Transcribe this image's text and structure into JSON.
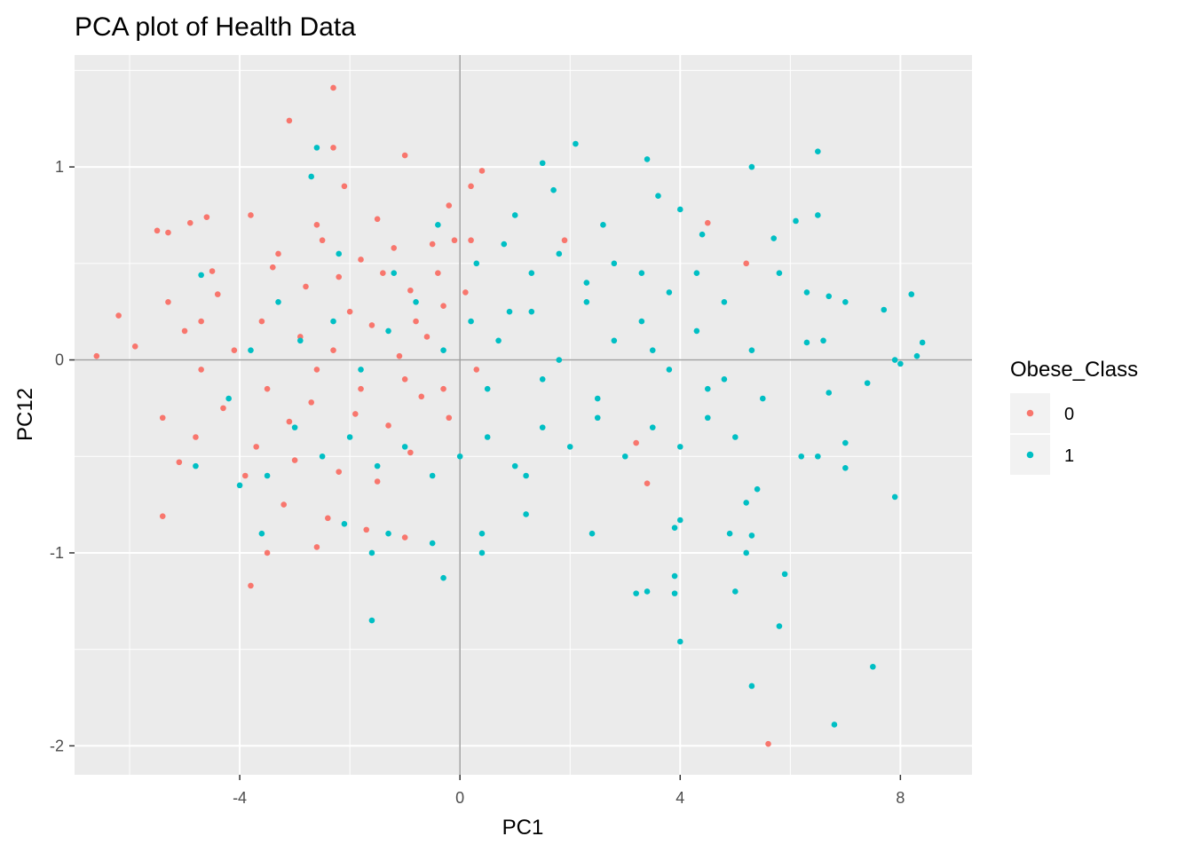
{
  "chart_data": {
    "type": "scatter",
    "title": "PCA plot of Health Data",
    "xlabel": "PC1",
    "ylabel": "PC12",
    "xlim": [
      -7.0,
      9.3
    ],
    "ylim": [
      -2.15,
      1.58
    ],
    "xticks": [
      -4,
      0,
      4,
      8
    ],
    "yticks": [
      -2,
      -1,
      0,
      1
    ],
    "xtick_labels": [
      "-4",
      "0",
      "4",
      "8"
    ],
    "ytick_labels": [
      "-2",
      "-1",
      "0",
      "1"
    ],
    "grid": true,
    "reference_lines": {
      "x": 0,
      "y": 0
    },
    "legend": {
      "title": "Obese_Class",
      "placement": "right",
      "entries": [
        {
          "label": "0",
          "color": "#F8766D"
        },
        {
          "label": "1",
          "color": "#00BFC4"
        }
      ]
    },
    "series": [
      {
        "name": "0",
        "color": "#F8766D",
        "points": [
          [
            -6.6,
            0.02
          ],
          [
            -6.2,
            0.23
          ],
          [
            -5.9,
            0.07
          ],
          [
            -5.5,
            0.67
          ],
          [
            -5.4,
            -0.81
          ],
          [
            -5.4,
            -0.3
          ],
          [
            -5.3,
            0.66
          ],
          [
            -5.3,
            0.3
          ],
          [
            -5.1,
            -0.53
          ],
          [
            -4.9,
            0.71
          ],
          [
            -4.7,
            0.2
          ],
          [
            -4.6,
            0.74
          ],
          [
            -4.5,
            0.46
          ],
          [
            -4.4,
            0.34
          ],
          [
            -3.8,
            0.75
          ],
          [
            -3.8,
            -1.17
          ],
          [
            -3.5,
            -1.0
          ],
          [
            -3.1,
            1.24
          ],
          [
            -2.6,
            0.7
          ],
          [
            -2.6,
            -0.97
          ],
          [
            -2.3,
            1.1
          ],
          [
            -2.3,
            1.41
          ],
          [
            -2.1,
            0.9
          ],
          [
            -1.5,
            0.73
          ],
          [
            -1.0,
            1.06
          ],
          [
            -0.5,
            0.6
          ],
          [
            -0.2,
            0.8
          ],
          [
            -0.1,
            0.62
          ],
          [
            -0.3,
            0.28
          ],
          [
            0.2,
            0.9
          ],
          [
            0.4,
            0.98
          ],
          [
            0.2,
            0.62
          ],
          [
            1.9,
            0.62
          ],
          [
            3.2,
            -0.43
          ],
          [
            3.4,
            -0.64
          ],
          [
            4.5,
            0.71
          ],
          [
            5.2,
            0.5
          ],
          [
            5.6,
            -1.99
          ],
          [
            -3.4,
            0.48
          ],
          [
            -2.8,
            0.38
          ],
          [
            -2.2,
            0.43
          ],
          [
            -1.8,
            0.52
          ],
          [
            -1.4,
            0.45
          ],
          [
            -0.9,
            0.36
          ],
          [
            -2.9,
            0.12
          ],
          [
            -2.3,
            0.05
          ],
          [
            -1.6,
            0.18
          ],
          [
            -1.1,
            0.02
          ],
          [
            -0.6,
            0.12
          ],
          [
            -3.5,
            -0.15
          ],
          [
            -2.7,
            -0.22
          ],
          [
            -1.9,
            -0.28
          ],
          [
            -1.3,
            -0.34
          ],
          [
            -0.7,
            -0.19
          ],
          [
            -3.7,
            -0.45
          ],
          [
            -3.0,
            -0.52
          ],
          [
            -2.2,
            -0.58
          ],
          [
            -1.5,
            -0.63
          ],
          [
            -0.9,
            -0.48
          ],
          [
            -4.1,
            0.05
          ],
          [
            -4.3,
            -0.25
          ],
          [
            -3.9,
            -0.6
          ],
          [
            -3.2,
            -0.75
          ],
          [
            -2.4,
            -0.82
          ],
          [
            -1.7,
            -0.88
          ],
          [
            -1.0,
            -0.92
          ],
          [
            -0.3,
            -0.15
          ],
          [
            0.1,
            0.35
          ],
          [
            -0.4,
            0.45
          ],
          [
            -2.5,
            0.62
          ],
          [
            -3.3,
            0.55
          ],
          [
            -1.2,
            0.58
          ],
          [
            -4.7,
            -0.05
          ],
          [
            -5.0,
            0.15
          ],
          [
            -4.8,
            -0.4
          ],
          [
            -2.0,
            0.25
          ],
          [
            -1.0,
            -0.1
          ],
          [
            -3.6,
            0.2
          ],
          [
            -2.6,
            -0.05
          ],
          [
            -1.8,
            -0.15
          ],
          [
            -0.8,
            0.2
          ],
          [
            -0.2,
            -0.3
          ],
          [
            0.3,
            -0.05
          ],
          [
            -3.1,
            -0.32
          ]
        ]
      },
      {
        "name": "1",
        "color": "#00BFC4",
        "points": [
          [
            -4.7,
            0.44
          ],
          [
            -4.8,
            -0.55
          ],
          [
            -4.0,
            -0.65
          ],
          [
            -3.6,
            -0.9
          ],
          [
            -2.6,
            1.1
          ],
          [
            -2.7,
            0.95
          ],
          [
            -1.6,
            -1.35
          ],
          [
            -1.6,
            -1.0
          ],
          [
            -0.3,
            -1.13
          ],
          [
            0.4,
            -1.0
          ],
          [
            1.2,
            -0.6
          ],
          [
            1.5,
            1.02
          ],
          [
            2.1,
            1.12
          ],
          [
            1.7,
            0.88
          ],
          [
            3.4,
            1.04
          ],
          [
            3.6,
            0.85
          ],
          [
            4.0,
            0.78
          ],
          [
            4.4,
            0.65
          ],
          [
            5.3,
            1.0
          ],
          [
            6.5,
            1.08
          ],
          [
            6.5,
            0.75
          ],
          [
            6.1,
            0.72
          ],
          [
            5.7,
            0.63
          ],
          [
            5.8,
            0.45
          ],
          [
            6.3,
            0.35
          ],
          [
            6.7,
            0.33
          ],
          [
            7.0,
            0.3
          ],
          [
            7.7,
            0.26
          ],
          [
            8.2,
            0.34
          ],
          [
            8.4,
            0.09
          ],
          [
            7.9,
            0.0
          ],
          [
            8.0,
            -0.02
          ],
          [
            8.3,
            0.02
          ],
          [
            7.4,
            -0.12
          ],
          [
            6.7,
            -0.17
          ],
          [
            6.6,
            0.1
          ],
          [
            6.3,
            0.09
          ],
          [
            6.2,
            -0.5
          ],
          [
            6.5,
            -0.5
          ],
          [
            7.0,
            -0.43
          ],
          [
            7.0,
            -0.56
          ],
          [
            7.9,
            -0.71
          ],
          [
            5.4,
            -0.67
          ],
          [
            5.2,
            -0.74
          ],
          [
            5.3,
            -0.91
          ],
          [
            4.9,
            -0.9
          ],
          [
            5.0,
            -1.2
          ],
          [
            5.2,
            -1.0
          ],
          [
            4.0,
            -0.83
          ],
          [
            3.9,
            -0.87
          ],
          [
            3.9,
            -1.12
          ],
          [
            3.9,
            -1.21
          ],
          [
            3.2,
            -1.21
          ],
          [
            3.4,
            -1.2
          ],
          [
            4.0,
            -1.46
          ],
          [
            5.3,
            -1.69
          ],
          [
            5.8,
            -1.38
          ],
          [
            5.9,
            -1.11
          ],
          [
            6.8,
            -1.89
          ],
          [
            7.5,
            -1.59
          ],
          [
            2.4,
            -0.9
          ],
          [
            1.2,
            -0.8
          ],
          [
            0.4,
            -0.9
          ],
          [
            -0.5,
            -0.95
          ],
          [
            -1.3,
            -0.9
          ],
          [
            -2.1,
            -0.85
          ],
          [
            -3.3,
            0.3
          ],
          [
            -2.9,
            0.1
          ],
          [
            -2.3,
            0.2
          ],
          [
            -1.8,
            -0.05
          ],
          [
            -1.3,
            0.15
          ],
          [
            -0.8,
            0.3
          ],
          [
            -0.3,
            0.05
          ],
          [
            0.2,
            0.2
          ],
          [
            0.7,
            0.1
          ],
          [
            1.3,
            0.25
          ],
          [
            1.8,
            0.0
          ],
          [
            2.3,
            0.3
          ],
          [
            2.8,
            0.1
          ],
          [
            3.3,
            0.2
          ],
          [
            3.8,
            -0.05
          ],
          [
            4.3,
            0.15
          ],
          [
            4.8,
            -0.1
          ],
          [
            5.3,
            0.05
          ],
          [
            -3.0,
            -0.35
          ],
          [
            -2.5,
            -0.5
          ],
          [
            -2.0,
            -0.4
          ],
          [
            -1.5,
            -0.55
          ],
          [
            -1.0,
            -0.45
          ],
          [
            -0.5,
            -0.6
          ],
          [
            0.0,
            -0.5
          ],
          [
            0.5,
            -0.4
          ],
          [
            1.0,
            -0.55
          ],
          [
            1.5,
            -0.35
          ],
          [
            2.0,
            -0.45
          ],
          [
            2.5,
            -0.3
          ],
          [
            3.0,
            -0.5
          ],
          [
            3.5,
            -0.35
          ],
          [
            4.0,
            -0.45
          ],
          [
            4.5,
            -0.3
          ],
          [
            5.0,
            -0.4
          ],
          [
            5.5,
            -0.2
          ],
          [
            0.3,
            0.5
          ],
          [
            0.8,
            0.6
          ],
          [
            1.3,
            0.45
          ],
          [
            1.8,
            0.55
          ],
          [
            2.3,
            0.4
          ],
          [
            2.8,
            0.5
          ],
          [
            3.3,
            0.45
          ],
          [
            3.8,
            0.35
          ],
          [
            4.3,
            0.45
          ],
          [
            4.8,
            0.3
          ],
          [
            1.0,
            0.75
          ],
          [
            2.6,
            0.7
          ],
          [
            0.5,
            -0.15
          ],
          [
            1.5,
            -0.1
          ],
          [
            2.5,
            -0.2
          ],
          [
            3.5,
            0.05
          ],
          [
            4.5,
            -0.15
          ],
          [
            0.9,
            0.25
          ],
          [
            -2.2,
            0.55
          ],
          [
            -1.2,
            0.45
          ],
          [
            -0.4,
            0.7
          ],
          [
            -3.8,
            0.05
          ],
          [
            -4.2,
            -0.2
          ],
          [
            -3.5,
            -0.6
          ]
        ]
      }
    ]
  }
}
